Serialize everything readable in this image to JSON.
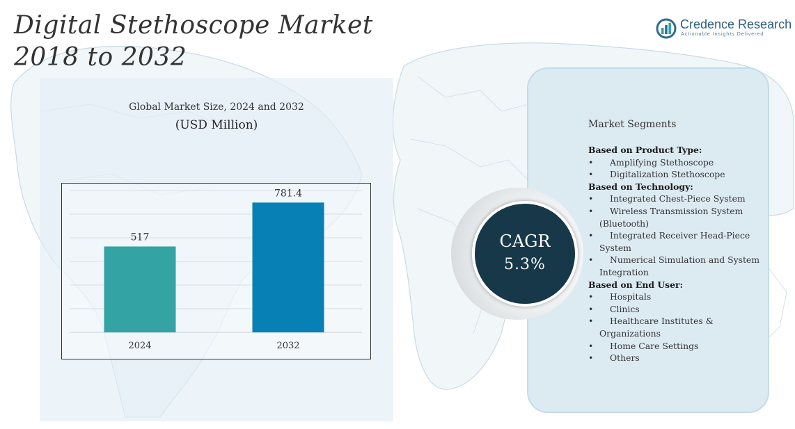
{
  "header": {
    "title_line1": "Digital Stethoscope Market",
    "title_line2": "2018 to 2032"
  },
  "logo": {
    "name": "Credence Research",
    "tagline": "Actionable Insights Delivered",
    "icon": "bar-chart-logo-icon"
  },
  "chart_data": {
    "type": "bar",
    "title": "Global Market Size, 2024 and 2032",
    "subtitle": "(USD Million)",
    "categories": [
      "2024",
      "2032"
    ],
    "values": [
      517,
      781.4
    ],
    "value_labels": [
      "517",
      "781.4"
    ],
    "bar_colors": [
      "#34a3a3",
      "#0780b5"
    ],
    "ylim": [
      0,
      900
    ],
    "grid": true,
    "xlabel": "",
    "ylabel": ""
  },
  "cagr": {
    "label": "CAGR",
    "value": "5.3%"
  },
  "segments": {
    "heading": "Market Segments",
    "groups": [
      {
        "title": "Based on Product Type:",
        "items": [
          "Amplifying Stethoscope",
          "Digitalization Stethoscope"
        ]
      },
      {
        "title": "Based on Technology:",
        "items": [
          "Integrated Chest-Piece System",
          "Wireless Transmission System (Bluetooth)",
          "Integrated Receiver Head-Piece System",
          "Numerical Simulation and System Integration"
        ]
      },
      {
        "title": "Based on End User:",
        "items": [
          "Hospitals",
          "Clinics",
          "Healthcare Institutes & Organizations",
          "Home Care Settings",
          "Others"
        ]
      }
    ]
  },
  "colors": {
    "accent_dark": "#163848",
    "panel_fill": "#dceaf2",
    "bar_2024": "#34a3a3",
    "bar_2032": "#0780b5"
  }
}
